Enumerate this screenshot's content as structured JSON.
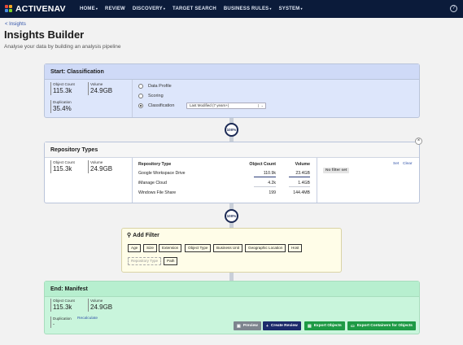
{
  "header": {
    "logo_text": "ACTIVENAV",
    "nav": [
      {
        "label": "HOME",
        "caret": true
      },
      {
        "label": "REVIEW",
        "caret": false
      },
      {
        "label": "DISCOVERY",
        "caret": true
      },
      {
        "label": "TARGET SEARCH",
        "caret": false
      },
      {
        "label": "BUSINESS RULES",
        "caret": true
      },
      {
        "label": "SYSTEM",
        "caret": true
      }
    ],
    "caret_glyph": "▾",
    "help_glyph": "?"
  },
  "page": {
    "back_link": "< Insights",
    "title": "Insights Builder",
    "subtitle": "Analyse your data by building an analysis pipeline"
  },
  "classification": {
    "title": "Start: Classification",
    "object_count_label": "Object Count",
    "object_count": "115.3k",
    "volume_label": "Volume",
    "volume": "24.9GB",
    "duplication_label": "Duplication",
    "duplication": "35.4%",
    "options": [
      {
        "label": "Data Profile",
        "checked": false
      },
      {
        "label": "Scoring",
        "checked": false
      },
      {
        "label": "Classification",
        "checked": true
      }
    ],
    "select_value": "Last Modified (7 years+)",
    "select_chevron": "⌄"
  },
  "badge1": "100%",
  "repository": {
    "title": "Repository Types",
    "close_glyph": "×",
    "object_count_label": "Object Count",
    "object_count": "115.3k",
    "volume_label": "Volume",
    "volume": "24.9GB",
    "columns": [
      "Repository Type",
      "Object Count",
      "Volume"
    ],
    "rows": [
      {
        "type": "Google Workspace Drive",
        "count": "110.9k",
        "volume": "23.4GB"
      },
      {
        "type": "iManage Cloud",
        "count": "4.2k",
        "volume": "1.4GB"
      },
      {
        "type": "Windows File Share",
        "count": "199",
        "volume": "144.4MB"
      }
    ],
    "no_filter": "No filter set",
    "set_label": "Set",
    "clear_label": "Clear"
  },
  "badge2": "100%",
  "add_filter": {
    "title": "Add Filter",
    "icon_glyph": "⚲",
    "chips": [
      "Age",
      "Size",
      "Extension",
      "Object Type",
      "Business Unit",
      "Geographic Location",
      "Host",
      "Repository Type",
      "Path"
    ]
  },
  "manifest": {
    "title": "End: Manifest",
    "object_count_label": "Object Count",
    "object_count": "115.3k",
    "volume_label": "Volume",
    "volume": "24.9GB",
    "duplication_label": "Duplication",
    "recalculate_label": "Recalculate",
    "duplication_value": "-",
    "buttons": {
      "preview": "Preview",
      "create_review": "Create Review",
      "export_objects": "Export Objects",
      "export_containers": "Export Containers for Objects"
    }
  },
  "colors": {
    "nav_bg": "#0b1b3a",
    "classification_bg": "#dde6fb",
    "filter_bg": "#fffde8",
    "manifest_bg": "#c9f5dc",
    "preview_btn": "#7d848e",
    "review_btn": "#1c2a6b",
    "export_btn": "#1e9a45"
  }
}
